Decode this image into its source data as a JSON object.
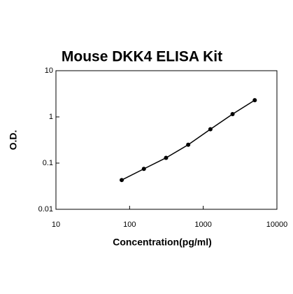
{
  "chart_data": {
    "type": "scatter",
    "title": "Mouse DKK4 ELISA Kit",
    "xlabel": "Concentration(pg/ml)",
    "ylabel": "O.D.",
    "xscale": "log",
    "yscale": "log",
    "xlim": [
      10,
      10000
    ],
    "ylim": [
      0.01,
      10
    ],
    "xticks": [
      10,
      100,
      1000,
      10000
    ],
    "yticks": [
      0.01,
      0.1,
      1,
      10
    ],
    "grid": false,
    "series": [
      {
        "color": "#000000",
        "x": [
          78.125,
          156.25,
          312.5,
          625,
          1250,
          2500,
          5000
        ],
        "values": [
          0.043,
          0.075,
          0.13,
          0.25,
          0.54,
          1.15,
          2.3
        ]
      }
    ]
  }
}
